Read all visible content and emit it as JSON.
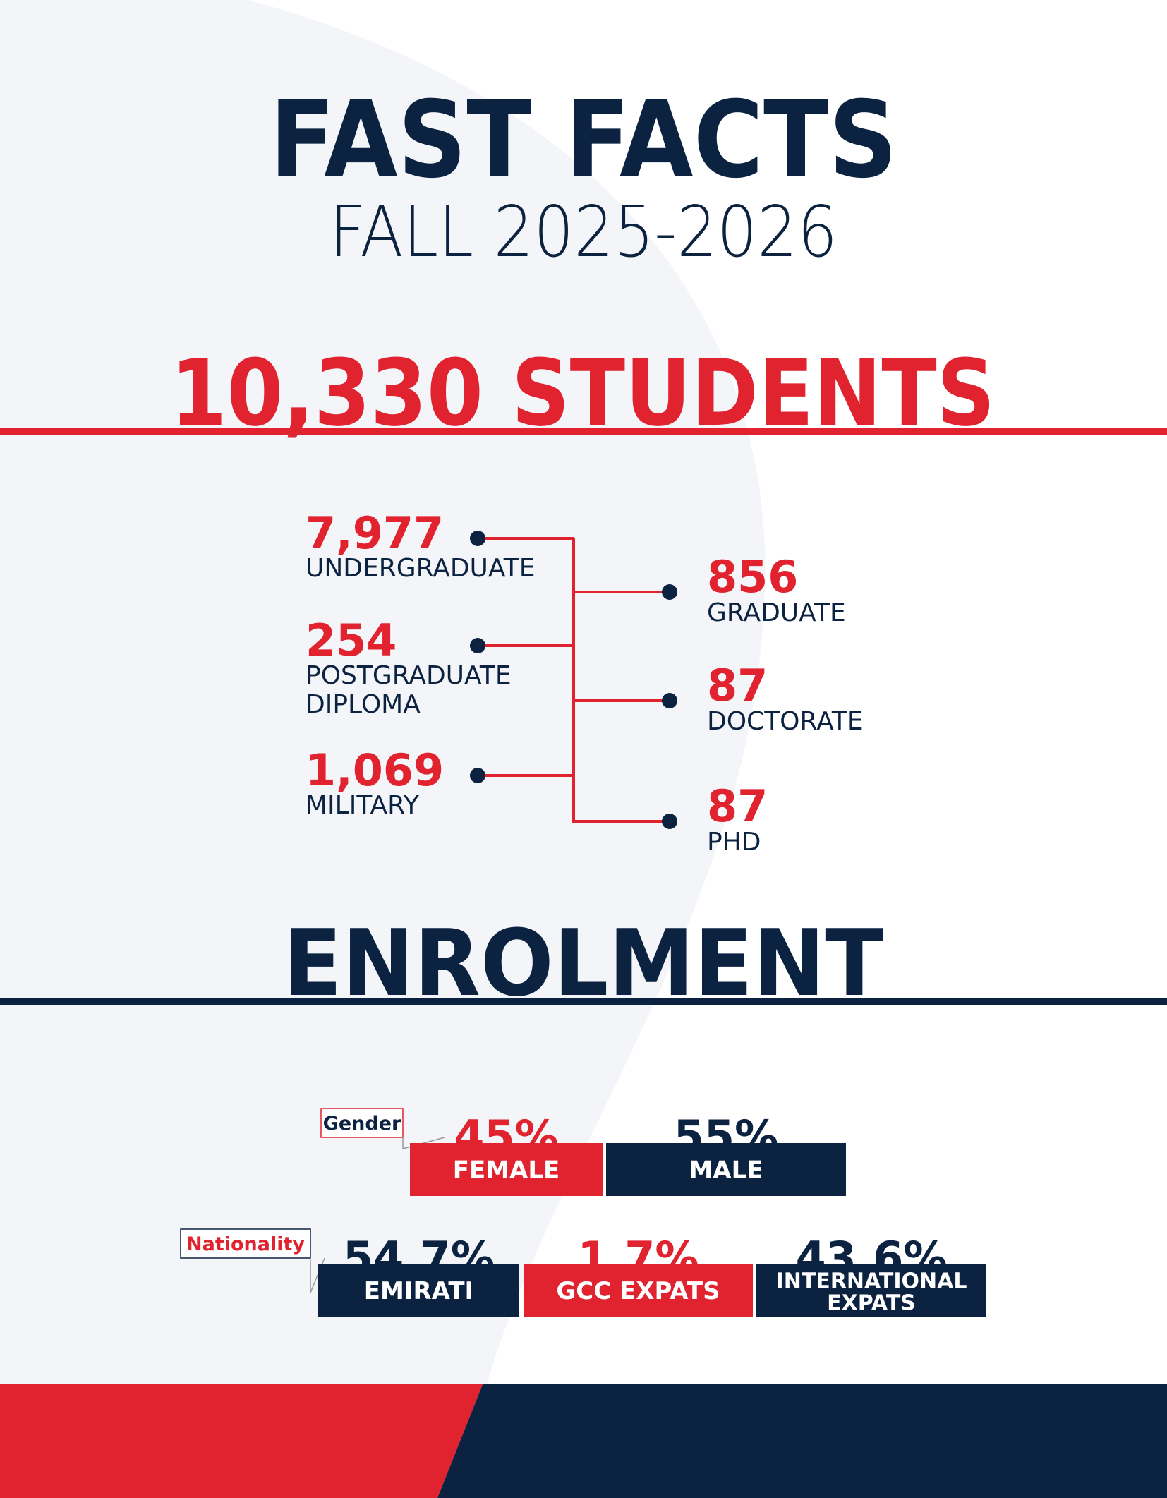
{
  "header": {
    "title": "FAST FACTS",
    "subtitle": "FALL 2025-2026"
  },
  "students": {
    "total": "10,330 STUDENTS",
    "left": [
      {
        "value": "7,977",
        "label_lines": [
          "UNDERGRADUATE"
        ]
      },
      {
        "value": "254",
        "label_lines": [
          "POSTGRADUATE",
          "DIPLOMA"
        ]
      },
      {
        "value": "1,069",
        "label_lines": [
          "MILITARY"
        ]
      }
    ],
    "right": [
      {
        "value": "856",
        "label_lines": [
          "GRADUATE"
        ]
      },
      {
        "value": "87",
        "label_lines": [
          "DOCTORATE"
        ]
      },
      {
        "value": "87",
        "label_lines": [
          "PHD"
        ]
      }
    ]
  },
  "enrolment": {
    "title": "ENROLMENT",
    "gender": {
      "label": "Gender",
      "items": [
        {
          "percent": "45%",
          "label_lines": [
            "FEMALE"
          ]
        },
        {
          "percent": "55%",
          "label_lines": [
            "MALE"
          ]
        }
      ]
    },
    "nationality": {
      "label": "Nationality",
      "items": [
        {
          "percent": "54.7%",
          "label_lines": [
            "EMIRATI"
          ]
        },
        {
          "percent": "1.7%",
          "label_lines": [
            "GCC EXPATS"
          ]
        },
        {
          "percent": "43.6%",
          "label_lines": [
            "INTERNATIONAL",
            "EXPATS"
          ]
        }
      ]
    }
  }
}
